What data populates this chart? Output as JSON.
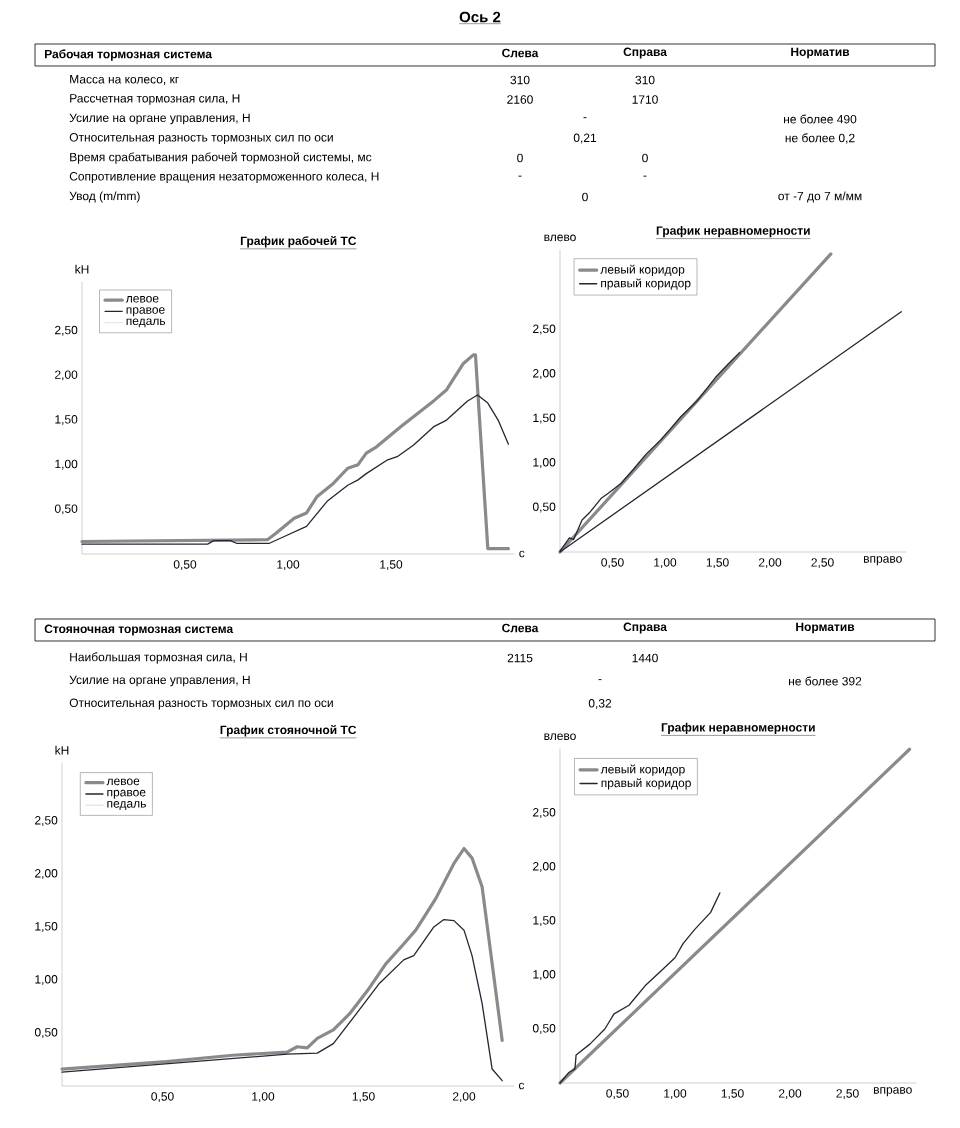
{
  "chart_data": [
    {
      "type": "other",
      "title": "Ось 2",
      "subtitle": "Рабочая тормозная система",
      "categories": [
        "Масса на колесо, кг",
        "Рассчетная тормозная сила, Н",
        "Усилие на органе управления, Н",
        "Относительная разность тормозных сил по оси",
        "Время срабатывания рабочей тормозной системы, мс",
        "Сопротивление вращения незаторможенного колеса, Н",
        "Увод (m/mm)"
      ],
      "series": [
        {
          "name": "Слева",
          "values": [
            310,
            2160,
            null,
            null,
            0,
            null,
            null
          ],
          "value_labels": [
            "310",
            "2160",
            null,
            null,
            "0",
            "-",
            null
          ]
        },
        {
          "name": "Справа",
          "values": [
            310,
            1710,
            null,
            null,
            0,
            null,
            null
          ],
          "value_labels": [
            "310",
            "1710",
            null,
            null,
            "0",
            "-",
            null
          ]
        },
        {
          "values": [
            null,
            null,
            null,
            0.21,
            null,
            null,
            0
          ],
          "value_labels": [
            null,
            null,
            "-",
            "0,21",
            null,
            null,
            "0"
          ]
        },
        {
          "name": "Норматив",
          "values": [
            null,
            null,
            490,
            0.2,
            null,
            null,
            null
          ],
          "value_labels": [
            null,
            null,
            "не более 490",
            "не более 0,2",
            null,
            null,
            "от -7 до 7 м/мм"
          ]
        }
      ]
    },
    {
      "type": "line",
      "title": "График рабочей ТС",
      "xlabel": "с",
      "ylabel": "kH",
      "xlim": [
        0,
        2.1
      ],
      "ylim": [
        0,
        3.05
      ],
      "xticks": [
        {
          "value": 0.5,
          "label": "0,50"
        },
        {
          "value": 1,
          "label": "1,00"
        },
        {
          "value": 1.5,
          "label": "1,50"
        }
      ],
      "yticks": [
        {
          "value": 0.5,
          "label": "0,50"
        },
        {
          "value": 1,
          "label": "1,00"
        },
        {
          "value": 1.5,
          "label": "1,50"
        },
        {
          "value": 2,
          "label": "2,00"
        },
        {
          "value": 2.5,
          "label": "2,50"
        }
      ],
      "legend": "top left",
      "series": [
        {
          "name": "левое",
          "color": "#8a8a8a",
          "x": [
            0,
            0.9,
            0.94,
            1.03,
            1.09,
            1.14,
            1.22,
            1.29,
            1.34,
            1.38,
            1.43,
            1.55,
            1.71,
            1.77,
            1.85,
            1.9,
            1.91,
            1.97,
            2.07
          ],
          "values": [
            0.14,
            0.16,
            0.23,
            0.4,
            0.46,
            0.64,
            0.79,
            0.96,
            1.0,
            1.13,
            1.2,
            1.43,
            1.72,
            1.84,
            2.13,
            2.23,
            2.23,
            0.06,
            0.06
          ]
        },
        {
          "name": "правое",
          "color": "#2b2233",
          "x": [
            0,
            0.61,
            0.64,
            0.72,
            0.75,
            0.91,
            0.995,
            1.09,
            1.19,
            1.29,
            1.34,
            1.38,
            1.48,
            1.53,
            1.61,
            1.71,
            1.77,
            1.87,
            1.92,
            1.97,
            2.02,
            2.07
          ],
          "values": [
            0.11,
            0.11,
            0.15,
            0.15,
            0.12,
            0.12,
            0.21,
            0.31,
            0.59,
            0.77,
            0.83,
            0.9,
            1.05,
            1.09,
            1.22,
            1.43,
            1.5,
            1.71,
            1.78,
            1.69,
            1.5,
            1.23
          ]
        },
        {
          "name": "педаль",
          "color": "#e6e6e6"
        }
      ]
    },
    {
      "type": "line",
      "title": "График неравномерности",
      "xlabel": "вправо",
      "ylabel": "влево",
      "xlim": [
        0,
        3.3
      ],
      "ylim": [
        0,
        3.4
      ],
      "xticks": [
        {
          "value": 0.5,
          "label": "0,50"
        },
        {
          "value": 1,
          "label": "1,00"
        },
        {
          "value": 1.5,
          "label": "1,50"
        },
        {
          "value": 2,
          "label": "2,00"
        },
        {
          "value": 2.5,
          "label": "2,50"
        }
      ],
      "yticks": [
        {
          "value": 0.5,
          "label": "0,50"
        },
        {
          "value": 1,
          "label": "1,00"
        },
        {
          "value": 1.5,
          "label": "1,50"
        },
        {
          "value": 2,
          "label": "2,00"
        },
        {
          "value": 2.5,
          "label": "2,50"
        }
      ],
      "legend": "top left",
      "series": [
        {
          "name": "левый коридор",
          "color": "#8a8a8a",
          "x": [
            0,
            2.58
          ],
          "values": [
            0,
            3.35
          ]
        },
        {
          "name": "правый коридор",
          "color": "#2b2233",
          "x": [
            0,
            3.25
          ],
          "values": [
            0,
            2.7
          ]
        },
        {
          "color": "#2b2233",
          "x": [
            0,
            0.09,
            0.13,
            0.21,
            0.28,
            0.39,
            0.46,
            0.58,
            0.7,
            0.82,
            0.96,
            1.05,
            1.15,
            1.3,
            1.48,
            1.6,
            1.71
          ],
          "values": [
            0.01,
            0.16,
            0.14,
            0.36,
            0.44,
            0.6,
            0.66,
            0.77,
            0.93,
            1.1,
            1.26,
            1.38,
            1.52,
            1.69,
            1.96,
            2.11,
            2.24
          ]
        }
      ]
    },
    {
      "type": "other",
      "subtitle": "Стояночная тормозная система",
      "categories": [
        "Наибольшая тормозная сила, Н",
        "Усилие на органе управления, Н",
        "Относительная разность тормозных сил по оси"
      ],
      "series": [
        {
          "name": "Слева",
          "values": [
            2115,
            null,
            null
          ],
          "value_labels": [
            "2115",
            null,
            null
          ]
        },
        {
          "name": "Справа",
          "values": [
            1440,
            null,
            null
          ],
          "value_labels": [
            "1440",
            null,
            null
          ]
        },
        {
          "values": [
            null,
            null,
            0.32
          ],
          "value_labels": [
            null,
            "-",
            "0,32"
          ]
        },
        {
          "name": "Норматив",
          "values": [
            null,
            392,
            null
          ],
          "value_labels": [
            null,
            "не более 392",
            null
          ]
        }
      ]
    },
    {
      "type": "line",
      "title": "График стояночной ТС",
      "xlabel": "с",
      "ylabel": "kH",
      "xlim": [
        0,
        2.25
      ],
      "ylim": [
        0,
        3.05
      ],
      "xticks": [
        {
          "value": 0.5,
          "label": "0,50"
        },
        {
          "value": 1,
          "label": "1,00"
        },
        {
          "value": 1.5,
          "label": "1,50"
        },
        {
          "value": 2,
          "label": "2,00"
        }
      ],
      "yticks": [
        {
          "value": 0.5,
          "label": "0,50"
        },
        {
          "value": 1,
          "label": "1,00"
        },
        {
          "value": 1.5,
          "label": "1,50"
        },
        {
          "value": 2,
          "label": "2,00"
        },
        {
          "value": 2.5,
          "label": "2,50"
        }
      ],
      "legend": "top left",
      "series": [
        {
          "name": "левое",
          "color": "#8a8a8a",
          "x": [
            0,
            0.52,
            0.85,
            1.12,
            1.17,
            1.22,
            1.27,
            1.35,
            1.43,
            1.52,
            1.61,
            1.7,
            1.76,
            1.81,
            1.86,
            1.95,
            2.0,
            2.04,
            2.09,
            2.19
          ],
          "values": [
            0.16,
            0.23,
            0.29,
            0.32,
            0.37,
            0.36,
            0.45,
            0.53,
            0.68,
            0.9,
            1.15,
            1.34,
            1.47,
            1.62,
            1.77,
            2.1,
            2.24,
            2.15,
            1.88,
            0.43
          ]
        },
        {
          "name": "правое",
          "color": "#2b2233",
          "x": [
            0,
            1.12,
            1.27,
            1.35,
            1.48,
            1.58,
            1.7,
            1.75,
            1.85,
            1.9,
            1.95,
            2.0,
            2.04,
            2.09,
            2.14,
            2.19
          ],
          "values": [
            0.13,
            0.3,
            0.31,
            0.4,
            0.72,
            0.97,
            1.19,
            1.23,
            1.5,
            1.57,
            1.56,
            1.47,
            1.23,
            0.78,
            0.16,
            0.05
          ]
        },
        {
          "name": "педаль",
          "color": "#e6e6e6"
        }
      ]
    },
    {
      "type": "line",
      "title": "График неравномерности",
      "xlabel": "вправо",
      "ylabel": "влево",
      "xlim": [
        0,
        3.1
      ],
      "ylim": [
        0,
        3.1
      ],
      "xticks": [
        {
          "value": 0.5,
          "label": "0,50"
        },
        {
          "value": 1,
          "label": "1,00"
        },
        {
          "value": 1.5,
          "label": "1,50"
        },
        {
          "value": 2,
          "label": "2,00"
        },
        {
          "value": 2.5,
          "label": "2,50"
        }
      ],
      "yticks": [
        {
          "value": 0.5,
          "label": "0,50"
        },
        {
          "value": 1,
          "label": "1,00"
        },
        {
          "value": 1.5,
          "label": "1,50"
        },
        {
          "value": 2,
          "label": "2,00"
        },
        {
          "value": 2.5,
          "label": "2,50"
        }
      ],
      "legend": "top left",
      "series": [
        {
          "name": "левый коридор",
          "color": "#8a8a8a",
          "x": [
            0,
            3.04
          ],
          "values": [
            0,
            3.09
          ]
        },
        {
          "name": "правый коридор",
          "color": "#2b2233",
          "x": [
            0,
            0.08,
            0.13,
            0.14,
            0.26,
            0.39,
            0.47,
            0.6,
            0.74,
            0.88,
            1.0,
            1.07,
            1.17,
            1.31,
            1.39
          ],
          "values": [
            0,
            0.1,
            0.13,
            0.26,
            0.36,
            0.5,
            0.64,
            0.72,
            0.9,
            1.04,
            1.16,
            1.29,
            1.42,
            1.58,
            1.76
          ]
        }
      ]
    }
  ]
}
